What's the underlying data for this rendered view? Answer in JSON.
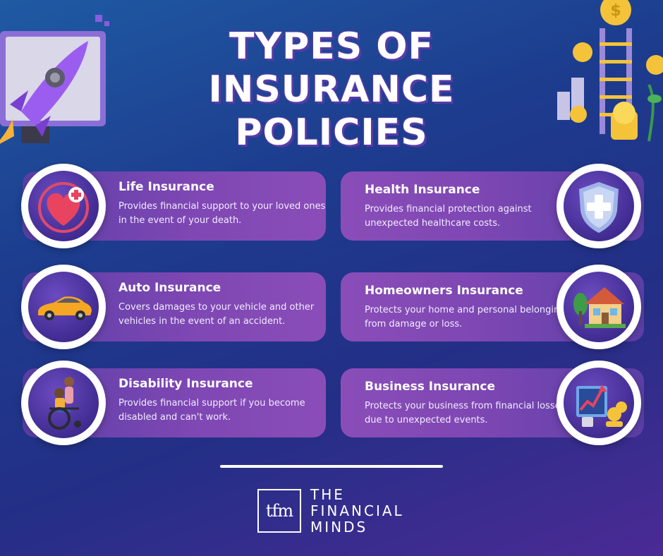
{
  "title": {
    "line1": "TYPES OF",
    "line2": "INSURANCE",
    "line3": "POLICIES"
  },
  "cards": [
    {
      "heading": "Life Insurance",
      "text": "Provides financial support to your loved ones in the event of your death.",
      "icon": "heart-cross-icon"
    },
    {
      "heading": "Health Insurance",
      "text": "Provides financial protection against unexpected healthcare costs.",
      "icon": "shield-cross-icon"
    },
    {
      "heading": "Auto Insurance",
      "text": "Covers damages to your vehicle and other vehicles in the event of an accident.",
      "icon": "car-icon"
    },
    {
      "heading": "Homeowners Insurance",
      "text": "Protects your home and personal belongings from damage or loss.",
      "icon": "house-icon"
    },
    {
      "heading": "Disability Insurance",
      "text": "Provides financial support if you become disabled and can't work.",
      "icon": "wheelchair-icon"
    },
    {
      "heading": "Business Insurance",
      "text": "Protects your business from financial losses due to unexpected events.",
      "icon": "business-chart-icon"
    }
  ],
  "logo": {
    "mark": "tfm",
    "line1": "THE",
    "line2": "FINANCIAL",
    "line3": "MINDS"
  },
  "colors": {
    "accent": "#7e47b3",
    "background": "#232f86",
    "title_outline": "#5a3aa8"
  }
}
